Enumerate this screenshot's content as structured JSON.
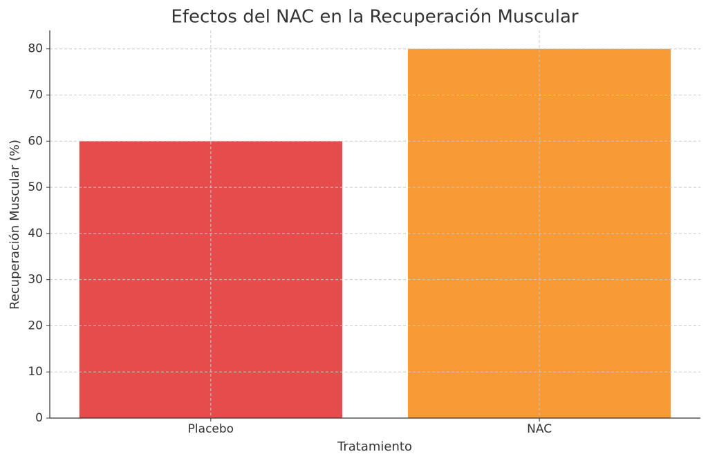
{
  "chart_data": {
    "type": "bar",
    "title": "Efectos del NAC en la Recuperación Muscular",
    "x_label": "Tratamiento",
    "y_label": "Recuperación Muscular (%)",
    "categories": [
      "Placebo",
      "NAC"
    ],
    "values": [
      60,
      80
    ],
    "colors": [
      "#e74c4c",
      "#f89a35"
    ],
    "ylim": [
      0,
      84
    ],
    "yticks": [
      0,
      10,
      20,
      30,
      40,
      50,
      60,
      70,
      80
    ],
    "grid": true
  }
}
